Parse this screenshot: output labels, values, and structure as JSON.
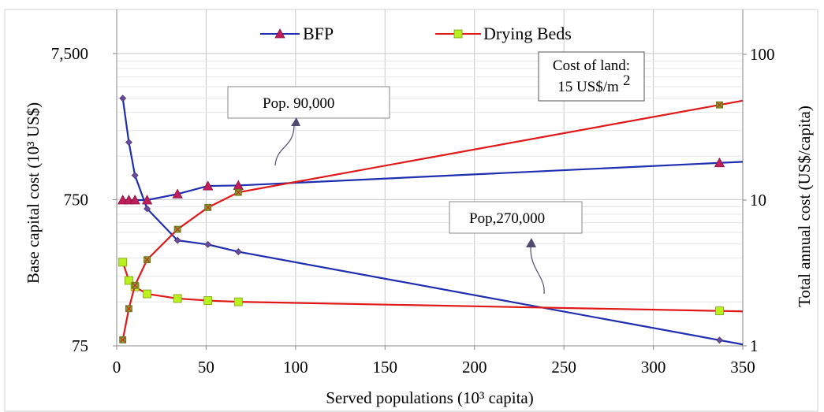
{
  "chart_data": {
    "type": "line",
    "xlabel": "Served populations  (10³ capita)",
    "ylabel_left": "Base capital cost (10³ US$)",
    "ylabel_right": "Total annual cost (US$/capita)",
    "x_ticks": [
      "0",
      "50",
      "100",
      "150",
      "200",
      "250",
      "300",
      "350"
    ],
    "x_tick_values": [
      0,
      50,
      100,
      150,
      200,
      250,
      300,
      350
    ],
    "xlim": [
      0,
      350
    ],
    "y_left_ticks": [
      "75",
      "750",
      "7,500"
    ],
    "y_left_tick_values": [
      75,
      750,
      7500
    ],
    "y_left_range": [
      75,
      15000
    ],
    "y_left_scale": "log",
    "y_right_ticks": [
      "1",
      "10",
      "100"
    ],
    "y_right_tick_values": [
      1,
      10,
      100
    ],
    "y_right_range": [
      1,
      100
    ],
    "y_right_scale": "log",
    "grid": true,
    "legend_position": "top",
    "series": [
      {
        "name": "BFP",
        "axis": "left",
        "color": "#1f2db0",
        "marker": "diamond-small",
        "x": [
          3.4,
          6.8,
          10.2,
          17,
          34,
          51,
          68,
          337
        ],
        "y": [
          3700,
          1850,
          1100,
          650,
          395,
          370,
          330,
          82
        ]
      },
      {
        "name": "BFP",
        "axis": "right",
        "color": "#1f2db0",
        "marker": "triangle",
        "x": [
          3.4,
          6.8,
          10.2,
          17,
          34,
          51,
          68,
          337
        ],
        "y": [
          10,
          10,
          10,
          10,
          11,
          12.5,
          12.6,
          18
        ]
      },
      {
        "name": "Drying Beds",
        "axis": "left",
        "color": "#e01818",
        "marker": "square",
        "x": [
          3.4,
          6.8,
          10.2,
          17,
          34,
          51,
          68,
          337
        ],
        "y": [
          280,
          210,
          190,
          170,
          158,
          153,
          150,
          130
        ]
      },
      {
        "name": "Drying Beds",
        "axis": "right",
        "color": "#e01818",
        "marker": "x-box",
        "x": [
          3.4,
          6.8,
          10.2,
          17,
          34,
          51,
          68,
          337
        ],
        "y": [
          1.1,
          1.8,
          2.6,
          3.9,
          6.3,
          8.9,
          11.3,
          45
        ]
      }
    ],
    "annotations": [
      {
        "text": "Pop. 90,000"
      },
      {
        "text": "Pop,270,000"
      },
      {
        "text": "Cost of land:",
        "text2": "15 US$/m",
        "sup": "2"
      }
    ]
  },
  "legend": {
    "bfp": "BFP",
    "drying_beds": "Drying Beds"
  }
}
